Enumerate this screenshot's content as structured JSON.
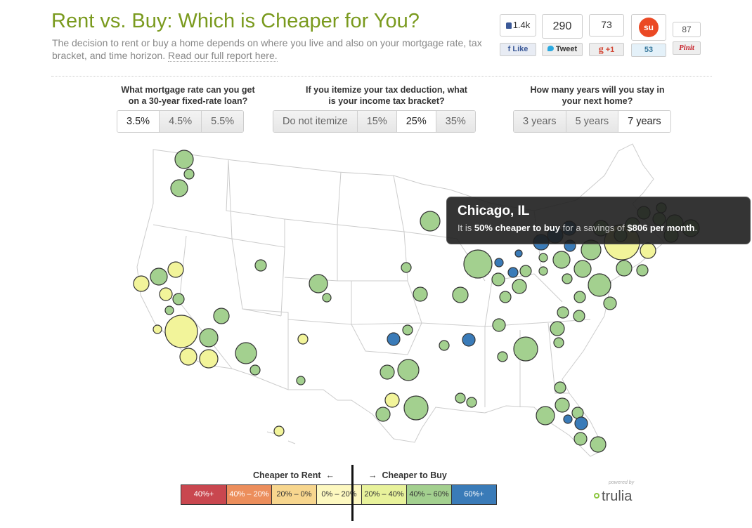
{
  "header": {
    "title": "Rent vs. Buy: Which is Cheaper for You?",
    "subtitle": "The decision to rent or buy a home depends on where you live and also on your mortgage rate, tax bracket, and time horizon.",
    "report_link": "Read our full report here."
  },
  "social": {
    "facebook_count": "1.4k",
    "facebook_label": "Like",
    "twitter_count": "290",
    "twitter_label": "Tweet",
    "gplus_count": "73",
    "gplus_label": "+1",
    "stumble_count": "53",
    "pinterest_count": "87",
    "pinterest_label": "Pinit"
  },
  "controls": [
    {
      "question": "What mortgage rate can you get on a 30-year fixed-rate loan?",
      "options": [
        "3.5%",
        "4.5%",
        "5.5%"
      ],
      "selected": "3.5%"
    },
    {
      "question": "If you itemize your tax deduction, what is your income tax bracket?",
      "options": [
        "Do not itemize",
        "15%",
        "25%",
        "35%"
      ],
      "selected": "25%"
    },
    {
      "question": "How many years will you stay in your next home?",
      "options": [
        "3 years",
        "5 years",
        "7 years"
      ],
      "selected": "7 years"
    }
  ],
  "tooltip": {
    "city": "Chicago, IL",
    "prefix": "It is",
    "highlight": "50% cheaper to buy",
    "middle": "for a savings of",
    "amount": "$806 per month",
    "end": "."
  },
  "legend": {
    "rent_label": "Cheaper to Rent",
    "buy_label": "Cheaper to Buy",
    "left_arrow": "←",
    "right_arrow": "→",
    "bins": [
      {
        "label": "40%+",
        "color": "#c9474f"
      },
      {
        "label": "40% – 20%",
        "color": "#ec8e5c"
      },
      {
        "label": "20% – 0%",
        "color": "#f7d68e"
      },
      {
        "label": "0% – 20%",
        "color": "#fdf8c0"
      },
      {
        "label": "20% – 40%",
        "color": "#e8f29b"
      },
      {
        "label": "40% – 60%",
        "color": "#a3d08f"
      },
      {
        "label": "60%+",
        "color": "#3a7bb8"
      }
    ],
    "powered_by": "powered by",
    "brand": "trulia"
  },
  "colors": {
    "green": "#a3d08f",
    "yellow": "#f2f49a",
    "blue": "#3a7bb8",
    "title": "#7a9a1e"
  }
}
